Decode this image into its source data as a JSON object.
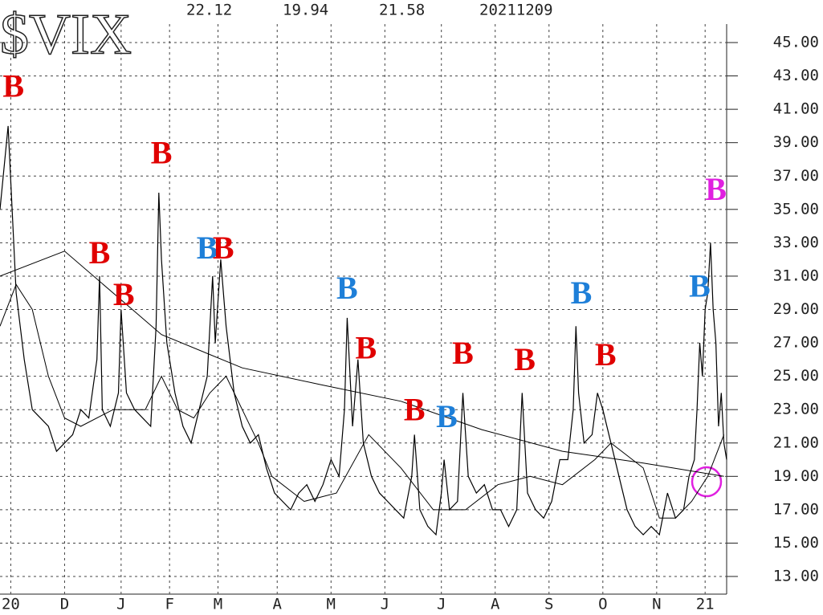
{
  "chart_data": {
    "type": "line",
    "title": "$VIX",
    "header": [
      "22.12",
      "19.94",
      "21.58",
      "20211209"
    ],
    "xlim": [
      0,
      270
    ],
    "ylim": [
      13,
      45
    ],
    "xticks": [
      {
        "value": 4,
        "label": "20"
      },
      {
        "value": 24,
        "label": "D"
      },
      {
        "value": 45,
        "label": "J"
      },
      {
        "value": 63,
        "label": "F"
      },
      {
        "value": 81,
        "label": "M"
      },
      {
        "value": 103,
        "label": "A"
      },
      {
        "value": 123,
        "label": "M"
      },
      {
        "value": 143,
        "label": "J"
      },
      {
        "value": 164,
        "label": "J"
      },
      {
        "value": 184,
        "label": "A"
      },
      {
        "value": 204,
        "label": "S"
      },
      {
        "value": 224,
        "label": "O"
      },
      {
        "value": 244,
        "label": "N"
      },
      {
        "value": 262,
        "label": "21"
      }
    ],
    "yticks": [
      {
        "value": 13,
        "label": "13.00"
      },
      {
        "value": 15,
        "label": "15.00"
      },
      {
        "value": 17,
        "label": "17.00"
      },
      {
        "value": 19,
        "label": "19.00"
      },
      {
        "value": 21,
        "label": "21.00"
      },
      {
        "value": 23,
        "label": "23.00"
      },
      {
        "value": 25,
        "label": "25.00"
      },
      {
        "value": 27,
        "label": "27.00"
      },
      {
        "value": 29,
        "label": "29.00"
      },
      {
        "value": 31,
        "label": "31.00"
      },
      {
        "value": 33,
        "label": "33.00"
      },
      {
        "value": 35,
        "label": "35.00"
      },
      {
        "value": 37,
        "label": "37.00"
      },
      {
        "value": 39,
        "label": "39.00"
      },
      {
        "value": 41,
        "label": "41.00"
      },
      {
        "value": 43,
        "label": "43.00"
      },
      {
        "value": 45,
        "label": "45.00"
      }
    ],
    "grid": true,
    "series": [
      {
        "color": "#000000",
        "width": 1.2,
        "x": [
          0,
          3,
          6,
          9,
          12,
          15,
          18,
          21,
          24,
          27,
          30,
          33,
          36,
          37,
          38,
          41,
          44,
          45,
          47,
          50,
          53,
          56,
          58,
          59,
          60,
          62,
          65,
          68,
          71,
          74,
          77,
          79,
          80,
          82,
          84,
          87,
          90,
          93,
          96,
          99,
          102,
          105,
          108,
          111,
          114,
          117,
          120,
          123,
          126,
          128,
          129,
          131,
          133,
          135,
          138,
          141,
          144,
          147,
          150,
          153,
          154,
          156,
          159,
          162,
          164,
          165,
          167,
          170,
          172,
          174,
          177,
          180,
          183,
          186,
          189,
          192,
          194,
          196,
          199,
          202,
          205,
          208,
          211,
          213,
          214,
          215,
          217,
          220,
          222,
          224,
          227,
          230,
          233,
          236,
          239,
          242,
          245,
          248,
          251,
          254,
          256,
          258,
          259,
          260,
          261,
          262,
          263,
          264,
          265,
          266,
          267,
          268,
          269,
          270
        ],
        "values": [
          35,
          40,
          30,
          26,
          23,
          22.5,
          22,
          20.5,
          21,
          21.5,
          23,
          22.5,
          26,
          31,
          23,
          22,
          24,
          29,
          24,
          23,
          22.5,
          22,
          28,
          36,
          32,
          27,
          24,
          22,
          21,
          23,
          25,
          31,
          27,
          32,
          28,
          24,
          22,
          21,
          21.5,
          19.5,
          18,
          17.5,
          17,
          18,
          18.5,
          17.5,
          18.5,
          20,
          19,
          23,
          28.5,
          22,
          26,
          21,
          19,
          18,
          17.5,
          17,
          16.5,
          19,
          21.5,
          17,
          16,
          15.5,
          18,
          20,
          17,
          17.5,
          24,
          19,
          18,
          18.5,
          17,
          17,
          16,
          17,
          24,
          18,
          17,
          16.5,
          17.5,
          20,
          20,
          23,
          28,
          24,
          21,
          21.5,
          24,
          23,
          21,
          19,
          17,
          16,
          15.5,
          16,
          15.5,
          18,
          16.5,
          17,
          19,
          20,
          23,
          27,
          25,
          29,
          30,
          33,
          29,
          27,
          22,
          24,
          21,
          20
        ]
      },
      {
        "color": "#000000",
        "width": 1,
        "x": [
          0,
          24,
          60,
          90,
          119,
          149,
          179,
          209,
          239,
          269
        ],
        "values": [
          31,
          32.5,
          27.5,
          25.5,
          24.5,
          23.5,
          21.8,
          20.5,
          19.8,
          19
        ]
      },
      {
        "color": "#000000",
        "width": 1,
        "x": [
          0,
          6,
          12,
          18,
          24,
          30,
          42,
          54,
          60,
          66,
          72,
          78,
          84,
          90,
          96,
          101,
          113,
          125,
          137,
          149,
          161,
          173,
          185,
          197,
          209,
          221,
          227,
          239,
          245,
          251,
          257,
          263,
          269
        ],
        "values": [
          28,
          30.5,
          29,
          25,
          22.5,
          22,
          23,
          23,
          25,
          23,
          22.5,
          24,
          25,
          23,
          21,
          19,
          17.5,
          18,
          21.5,
          19.5,
          17,
          17,
          18.5,
          19,
          18.5,
          20,
          21,
          19.5,
          16.5,
          16.5,
          17.5,
          19,
          21.5
        ]
      }
    ],
    "annotations": [
      {
        "text": "B",
        "x": 5,
        "y": 42.2,
        "color": "#e00000"
      },
      {
        "text": "B",
        "x": 37,
        "y": 32.2,
        "color": "#e00000"
      },
      {
        "text": "B",
        "x": 46,
        "y": 29.7,
        "color": "#e00000"
      },
      {
        "text": "B",
        "x": 60,
        "y": 38.2,
        "color": "#e00000"
      },
      {
        "text": "B",
        "x": 77,
        "y": 32.5,
        "color": "#1e7fd8"
      },
      {
        "text": "B",
        "x": 83,
        "y": 32.5,
        "color": "#e00000"
      },
      {
        "text": "B",
        "x": 129,
        "y": 30.1,
        "color": "#1e7fd8"
      },
      {
        "text": "B",
        "x": 136,
        "y": 26.5,
        "color": "#e00000"
      },
      {
        "text": "B",
        "x": 154,
        "y": 22.8,
        "color": "#e00000"
      },
      {
        "text": "B",
        "x": 166,
        "y": 22.4,
        "color": "#1e7fd8"
      },
      {
        "text": "B",
        "x": 172,
        "y": 26.2,
        "color": "#e00000"
      },
      {
        "text": "B",
        "x": 195,
        "y": 25.8,
        "color": "#e00000"
      },
      {
        "text": "B",
        "x": 216,
        "y": 29.8,
        "color": "#1e7fd8"
      },
      {
        "text": "B",
        "x": 225,
        "y": 26.1,
        "color": "#e00000"
      },
      {
        "text": "B",
        "x": 260,
        "y": 30.2,
        "color": "#1e7fd8"
      },
      {
        "text": "B",
        "x": 266,
        "y": 36,
        "color": "#e020e0"
      }
    ]
  }
}
